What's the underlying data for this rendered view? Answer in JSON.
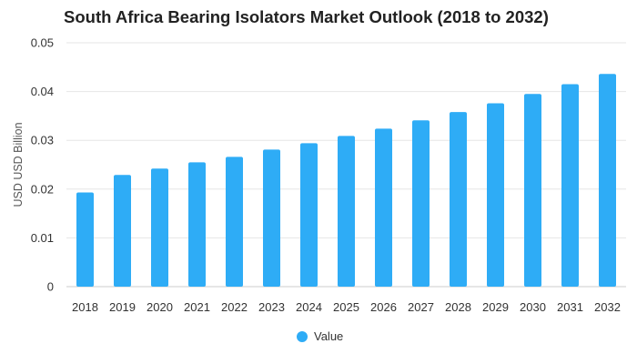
{
  "chart_data": {
    "type": "bar",
    "title": "South Africa Bearing Isolators Market Outlook (2018 to 2032)",
    "xlabel": "",
    "ylabel": "USD USD Billion",
    "categories": [
      "2018",
      "2019",
      "2020",
      "2021",
      "2022",
      "2023",
      "2024",
      "2025",
      "2026",
      "2027",
      "2028",
      "2029",
      "2030",
      "2031",
      "2032"
    ],
    "series": [
      {
        "name": "Value",
        "values": [
          0.0193,
          0.0229,
          0.0242,
          0.0255,
          0.0266,
          0.0281,
          0.0294,
          0.0309,
          0.0324,
          0.0341,
          0.0358,
          0.0376,
          0.0395,
          0.0415,
          0.0436
        ]
      }
    ],
    "ylim": [
      0,
      0.05
    ],
    "yticks": [
      0,
      0.01,
      0.02,
      0.03,
      0.04,
      0.05
    ],
    "ytick_labels": [
      "0",
      "0.01",
      "0.02",
      "0.03",
      "0.04",
      "0.05"
    ],
    "grid": true,
    "legend_position": "bottom-center",
    "colors": {
      "bar": "#2EACF6",
      "grid": "#E6E6E6",
      "text": "#333333"
    }
  }
}
